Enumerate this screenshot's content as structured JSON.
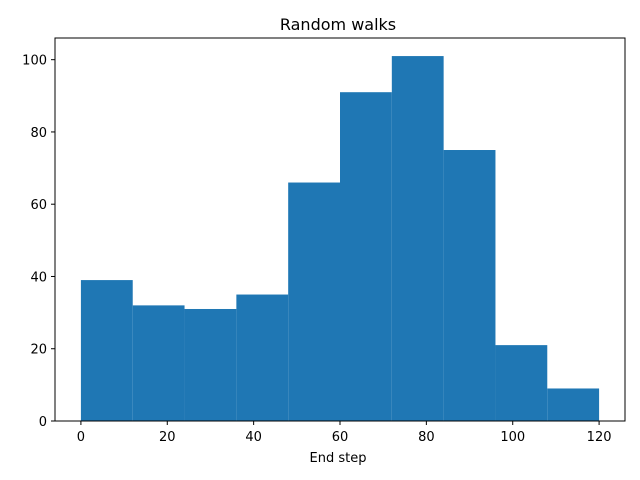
{
  "chart_data": {
    "type": "bar",
    "title": "Random walks",
    "xlabel": "End step",
    "ylabel": "",
    "bin_edges": [
      0,
      12,
      24,
      36,
      48,
      60,
      72,
      84,
      96,
      108,
      120
    ],
    "values": [
      39,
      32,
      31,
      35,
      66,
      91,
      101,
      75,
      21,
      9
    ],
    "xlim": [
      -6,
      126
    ],
    "ylim": [
      0,
      106
    ],
    "xticks": [
      0,
      20,
      40,
      60,
      80,
      100,
      120
    ],
    "yticks": [
      0,
      20,
      40,
      60,
      80,
      100
    ],
    "grid": false,
    "bar_color": "#1f77b4"
  }
}
